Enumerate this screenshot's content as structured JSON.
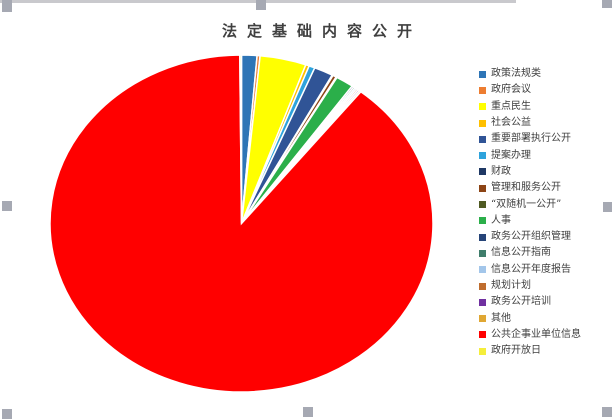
{
  "chart_data": {
    "type": "pie",
    "title": "法定基础内容公开",
    "legend_position": "right",
    "legend_order": [
      "政策法规类",
      "政府会议",
      "重点民生",
      "社会公益",
      "重要部署执行公开",
      "提案办理",
      "财政",
      "管理和服务公开",
      "“双随机一公开”",
      "人事",
      "政务公开组织管理",
      "信息公开指南",
      "信息公开年度报告",
      "规划计划",
      "政务公开培训",
      "其他",
      "公共企事业单位信息",
      "政府开放日"
    ],
    "slices": [
      {
        "label": "政策法规类",
        "color": "#2E75B6",
        "value": 1.3
      },
      {
        "label": "政府会议",
        "color": "#ED7D31",
        "value": 0.25
      },
      {
        "label": "重点民生",
        "color": "#FFFF00",
        "value": 3.9
      },
      {
        "label": "社会公益",
        "color": "#FFC000",
        "value": 0.3
      },
      {
        "label": "提案办理",
        "color": "#2EA3DC",
        "value": 0.5
      },
      {
        "label": "重要部署执行公开",
        "color": "#305496",
        "value": 1.6
      },
      {
        "label": "财政",
        "color": "#1F3864",
        "value": 0.08
      },
      {
        "label": "管理和服务公开",
        "color": "#8C4415",
        "value": 0.3
      },
      {
        "label": "“双随机一公开”",
        "color": "#4F5A22",
        "value": 0.08
      },
      {
        "label": "人事",
        "color": "#2BAF4A",
        "value": 1.5
      },
      {
        "label": "政务公开组织管理",
        "color": "#264478",
        "value": 0.15
      },
      {
        "label": "信息公开指南",
        "color": "#3F7D6B",
        "value": 0.15
      },
      {
        "label": "信息公开年度报告",
        "color": "#A3C6EA",
        "value": 0.15
      },
      {
        "label": "规划计划",
        "color": "#BF6D2E",
        "value": 0.15
      },
      {
        "label": "政务公开培训",
        "color": "#7030A0",
        "value": 0.15
      },
      {
        "label": "其他",
        "color": "#E0A733",
        "value": 0.15
      },
      {
        "label": "公共企事业单位信息",
        "color": "#FF0000",
        "value": 89.15
      },
      {
        "label": "政府开放日",
        "color": "#F5EE3B",
        "value": 0.14
      }
    ]
  },
  "colors": {
    "title_text": "#404040",
    "legend_text": "#3F3F3F",
    "slice_border": "#FFFFFF",
    "selection_handle": "#A6A9B3",
    "top_border": "#C9C9CD",
    "background": "#FFFFFF"
  }
}
